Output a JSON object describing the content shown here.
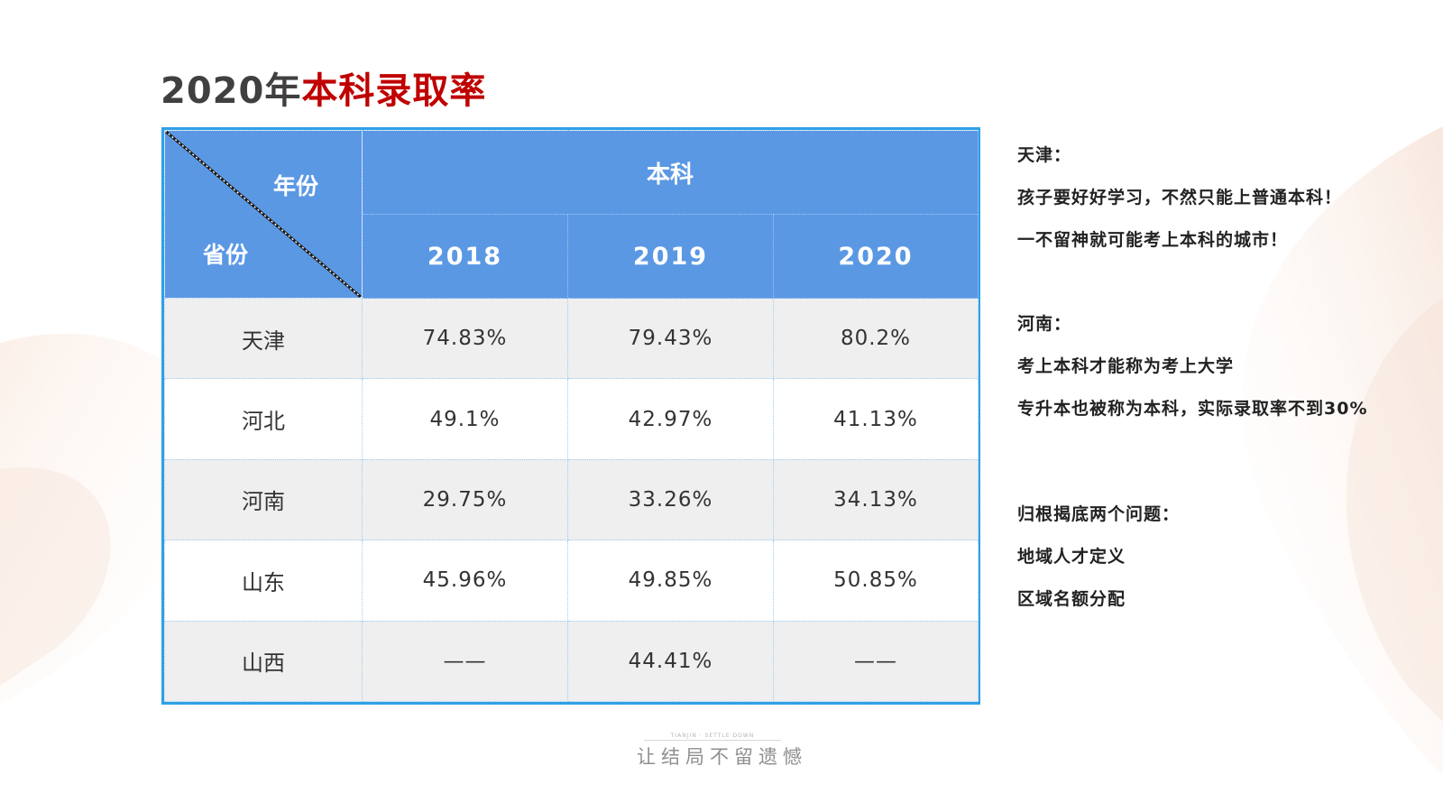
{
  "title": {
    "prefix": "2020年",
    "highlight": "本科录取率"
  },
  "table": {
    "corner_top": "年份",
    "corner_bottom": "省份",
    "group_header": "本科",
    "years": [
      "2018",
      "2019",
      "2020"
    ],
    "rows": [
      {
        "province": "天津",
        "values": [
          "74.83%",
          "79.43%",
          "80.2%"
        ]
      },
      {
        "province": "河北",
        "values": [
          "49.1%",
          "42.97%",
          "41.13%"
        ]
      },
      {
        "province": "河南",
        "values": [
          "29.75%",
          "33.26%",
          "34.13%"
        ]
      },
      {
        "province": "山东",
        "values": [
          "45.96%",
          "49.85%",
          "50.85%"
        ]
      },
      {
        "province": "山西",
        "values": [
          "——",
          "44.41%",
          "——"
        ]
      }
    ]
  },
  "notes": {
    "tianjin_heading": "天津：",
    "tianjin_line1": "孩子要好好学习，不然只能上普通本科！",
    "tianjin_line2": "一不留神就可能考上本科的城市！",
    "henan_heading": "河南：",
    "henan_line1": "考上本科才能称为考上大学",
    "henan_line2": "专升本也被称为本科，实际录取率不到30%",
    "summary_heading": "归根揭底两个问题：",
    "summary_line1": "地域人才定义",
    "summary_line2": "区域名额分配"
  },
  "footer": {
    "small_text": "TIANJIN · SETTLE DOWN",
    "main_text": "让结局不留遗憾"
  },
  "colors": {
    "accent_red": "#c00000",
    "header_blue": "#5b98e4",
    "border_blue": "#2fa0e6"
  }
}
